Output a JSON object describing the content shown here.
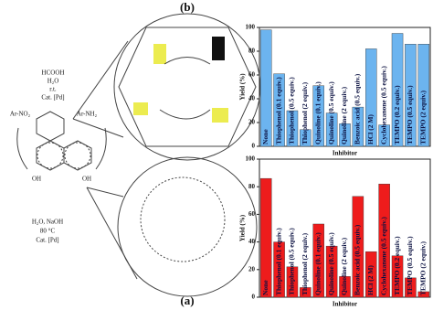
{
  "panel_labels": {
    "a": "(a)",
    "b": "(b)"
  },
  "scheme": {
    "texts": [
      "HCOOH",
      "H₂O",
      "r.t.",
      "Cat. [Pd]",
      "Ar-NO₂",
      "Ar-NH₂",
      "H₂O, NaOH",
      "80 °C",
      "Cat. [Pd]",
      "OH",
      "OH"
    ]
  },
  "chart_data": [
    {
      "type": "bar",
      "ylabel": "Yield (%)",
      "xlabel": "Inhibitor",
      "color": "#6cb4ef",
      "categories": [
        "None",
        "Thiophenol (0.1 equiv.)",
        "Thiophenol (0.5 equiv.)",
        "Thiophenol (2 equiv.)",
        "Quinoline (0.1 equiv.)",
        "Quinoline (0.5 equiv.)",
        "Quinoline (2 equiv.)",
        "Benzoic acid (0.5 equiv.)",
        "HCl (2 M)",
        "Cyclohexanone (0.5 equiv.)",
        "TEMPO (0.2 equiv.)",
        "TEMPO (0.5 equiv.)",
        "TEMPO (2 equiv.)"
      ],
      "values": [
        98,
        61,
        30,
        14,
        51,
        28,
        19,
        33,
        82,
        18,
        95,
        86,
        86
      ],
      "ylim": [
        0,
        100
      ],
      "yticks": [
        0,
        20,
        40,
        60,
        80,
        100
      ]
    },
    {
      "type": "bar",
      "ylabel": "Yield (%)",
      "xlabel": "Inhibitor",
      "color": "#ee1c1c",
      "categories": [
        "None",
        "Thiophenol (0.1 equiv.)",
        "Thiophenol (0.5 equiv.)",
        "Thiophenol (2 equiv.)",
        "Quinoline (0.1 equiv.)",
        "Quinoline (0.5 equiv.)",
        "Quinoline (2 equiv.)",
        "Benzoic acid (0.5 equiv.)",
        "HCl (2 M)",
        "Cyclohexanone (0.5 equiv.)",
        "TEMPO (0.2 equiv.)",
        "TEMPO (0.5 equiv.)",
        "TEMPO (2 equiv.)"
      ],
      "values": [
        86,
        40,
        22,
        7,
        53,
        37,
        15,
        73,
        33,
        82,
        30,
        14,
        4
      ],
      "ylim": [
        0,
        100
      ],
      "yticks": [
        0,
        20,
        40,
        60,
        80,
        100
      ]
    }
  ]
}
